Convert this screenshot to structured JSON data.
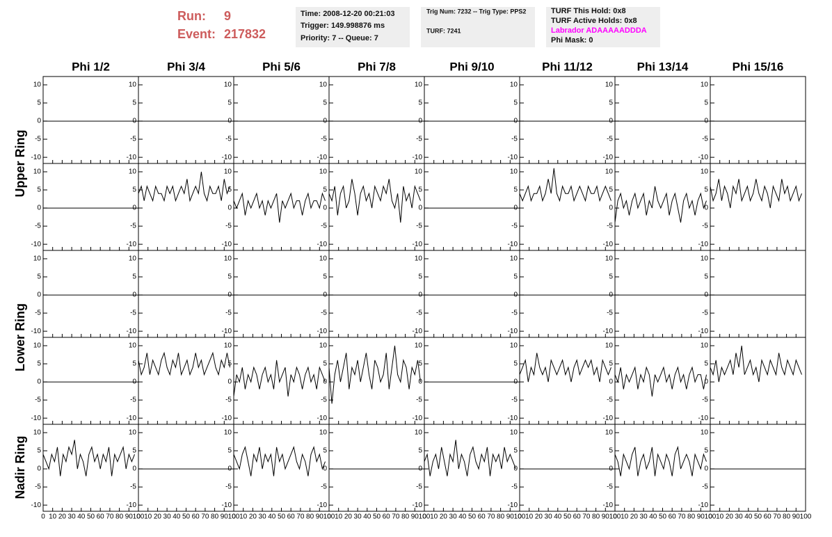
{
  "header": {
    "run_label": "Run:",
    "run": "9",
    "event_label": "Event:",
    "event": "217832",
    "time": "Time: 2008-12-20 00:21:03",
    "trigger": "Trigger: 149.998876 ms",
    "priority": "Priority: 7 -- Queue: 7",
    "trig_num": "Trig Num: 7232 -- Trig Type: PPS2",
    "turf": "TURF: 7241",
    "turf_hold": "TURF This Hold: 0x8",
    "turf_active": "TURF Active Holds: 0x8",
    "labrador": "Labrador ADAAAAADDDA",
    "phi_mask": "Phi Mask: 0"
  },
  "chart_data": {
    "type": "line",
    "color": "#000000",
    "columns": [
      "Phi 1/2",
      "Phi 3/4",
      "Phi 5/6",
      "Phi 7/8",
      "Phi 9/10",
      "Phi 11/12",
      "Phi 13/14",
      "Phi 15/16"
    ],
    "row_labels": [
      "Upper Ring",
      "Lower Ring",
      "Nadir Ring"
    ],
    "xlim": [
      0,
      100
    ],
    "ylim": [
      -11.7,
      12.3
    ],
    "xticks": [
      0,
      10,
      20,
      30,
      40,
      50,
      60,
      70,
      80,
      90,
      100
    ],
    "yticks": [
      -10,
      -5,
      0,
      5,
      10
    ],
    "x": [
      0,
      3,
      6,
      9,
      12,
      15,
      18,
      21,
      24,
      27,
      30,
      33,
      36,
      39,
      42,
      45,
      48,
      51,
      54,
      57,
      60,
      63,
      66,
      69,
      72,
      75,
      78,
      81,
      84,
      87,
      90,
      93,
      96
    ],
    "panels": [
      {
        "x": [
          0,
          100
        ],
        "values": [
          0,
          0
        ]
      },
      {
        "x": [
          0,
          100
        ],
        "values": [
          0,
          0
        ]
      },
      {
        "x": [
          0,
          100
        ],
        "values": [
          0,
          0
        ]
      },
      {
        "x": [
          0,
          100
        ],
        "values": [
          0,
          0
        ]
      },
      {
        "x": [
          0,
          100
        ],
        "values": [
          0,
          0
        ]
      },
      {
        "x": [
          0,
          100
        ],
        "values": [
          0,
          0
        ]
      },
      {
        "x": [
          0,
          100
        ],
        "values": [
          0,
          0
        ]
      },
      {
        "x": [
          0,
          100
        ],
        "values": [
          0,
          0
        ]
      },
      {
        "x": [
          0,
          100
        ],
        "values": [
          0,
          0
        ]
      },
      {
        "values": [
          4,
          6,
          2,
          6,
          4,
          2,
          6,
          4,
          4,
          2,
          6,
          4,
          6,
          2,
          4,
          6,
          4,
          8,
          2,
          4,
          6,
          4,
          10,
          4,
          2,
          6,
          4,
          4,
          6,
          2,
          8,
          4,
          6
        ]
      },
      {
        "values": [
          2,
          0,
          2,
          4,
          -2,
          2,
          0,
          2,
          4,
          0,
          2,
          -2,
          2,
          0,
          2,
          4,
          -4,
          2,
          0,
          2,
          4,
          0,
          2,
          2,
          -2,
          2,
          4,
          0,
          2,
          2,
          0,
          4,
          2
        ]
      },
      {
        "values": [
          4,
          2,
          6,
          -2,
          4,
          6,
          0,
          2,
          8,
          4,
          -2,
          4,
          6,
          2,
          4,
          0,
          6,
          4,
          2,
          6,
          4,
          8,
          2,
          0,
          4,
          -4,
          6,
          2,
          4,
          0,
          6,
          4,
          2
        ]
      },
      {
        "x": [
          0,
          100
        ],
        "values": [
          0,
          0
        ]
      },
      {
        "values": [
          4,
          2,
          4,
          6,
          2,
          4,
          4,
          6,
          2,
          4,
          8,
          4,
          11,
          4,
          2,
          6,
          4,
          4,
          6,
          2,
          4,
          6,
          4,
          2,
          6,
          4,
          4,
          6,
          2,
          4,
          6,
          4,
          2
        ]
      },
      {
        "values": [
          -4,
          2,
          4,
          0,
          2,
          -2,
          2,
          4,
          0,
          2,
          4,
          -2,
          2,
          0,
          6,
          2,
          0,
          2,
          4,
          -2,
          2,
          4,
          0,
          -4,
          2,
          4,
          0,
          2,
          -2,
          2,
          4,
          0,
          2
        ]
      },
      {
        "values": [
          6,
          2,
          4,
          8,
          2,
          6,
          4,
          0,
          6,
          4,
          8,
          2,
          4,
          6,
          2,
          4,
          8,
          4,
          2,
          6,
          4,
          0,
          6,
          4,
          2,
          8,
          4,
          6,
          2,
          4,
          6,
          2,
          4
        ]
      },
      {
        "x": [
          0,
          100
        ],
        "values": [
          0,
          0
        ]
      },
      {
        "x": [
          0,
          100
        ],
        "values": [
          0,
          0
        ]
      },
      {
        "x": [
          0,
          100
        ],
        "values": [
          0,
          0
        ]
      },
      {
        "x": [
          0,
          100
        ],
        "values": [
          0,
          0
        ]
      },
      {
        "x": [
          0,
          100
        ],
        "values": [
          0,
          0
        ]
      },
      {
        "x": [
          0,
          100
        ],
        "values": [
          0,
          0
        ]
      },
      {
        "x": [
          0,
          100
        ],
        "values": [
          0,
          0
        ]
      },
      {
        "x": [
          0,
          100
        ],
        "values": [
          0,
          0
        ]
      },
      {
        "x": [
          0,
          100
        ],
        "values": [
          0,
          0
        ]
      },
      {
        "values": [
          6,
          2,
          4,
          8,
          2,
          6,
          4,
          2,
          6,
          8,
          4,
          2,
          6,
          4,
          8,
          2,
          4,
          6,
          2,
          4,
          8,
          4,
          6,
          2,
          4,
          6,
          8,
          4,
          2,
          6,
          4,
          8,
          4
        ]
      },
      {
        "values": [
          -4,
          2,
          0,
          4,
          -2,
          2,
          0,
          4,
          2,
          -2,
          2,
          4,
          0,
          2,
          -2,
          6,
          0,
          2,
          4,
          -4,
          2,
          0,
          4,
          2,
          -2,
          2,
          4,
          0,
          2,
          -2,
          4,
          2,
          0
        ]
      },
      {
        "values": [
          4,
          -6,
          2,
          6,
          0,
          4,
          8,
          -2,
          4,
          2,
          6,
          0,
          4,
          8,
          2,
          -2,
          6,
          4,
          0,
          2,
          8,
          -2,
          4,
          10,
          2,
          0,
          6,
          4,
          -2,
          4,
          2,
          6,
          0
        ]
      },
      {
        "x": [
          0,
          100
        ],
        "values": [
          0,
          0
        ]
      },
      {
        "values": [
          2,
          4,
          6,
          0,
          4,
          2,
          8,
          4,
          2,
          4,
          0,
          6,
          4,
          2,
          4,
          6,
          2,
          4,
          0,
          4,
          6,
          2,
          4,
          6,
          4,
          6,
          2,
          4,
          0,
          6,
          4,
          2,
          4
        ]
      },
      {
        "values": [
          2,
          0,
          4,
          -2,
          2,
          0,
          2,
          4,
          -2,
          2,
          0,
          4,
          2,
          -4,
          2,
          0,
          2,
          4,
          0,
          2,
          -2,
          2,
          4,
          0,
          2,
          -2,
          2,
          4,
          0,
          2,
          2,
          -2,
          2
        ]
      },
      {
        "values": [
          4,
          2,
          6,
          0,
          4,
          2,
          4,
          6,
          2,
          8,
          4,
          10,
          2,
          4,
          6,
          2,
          4,
          0,
          6,
          4,
          2,
          6,
          4,
          2,
          8,
          4,
          2,
          6,
          4,
          2,
          6,
          4,
          2
        ]
      },
      {
        "values": [
          4,
          2,
          0,
          4,
          2,
          6,
          -2,
          4,
          2,
          6,
          4,
          8,
          0,
          4,
          2,
          -2,
          4,
          6,
          2,
          4,
          0,
          4,
          2,
          6,
          -2,
          4,
          2,
          4,
          6,
          0,
          4,
          2,
          4
        ]
      },
      {
        "x": [
          0,
          100
        ],
        "values": [
          0,
          0
        ]
      },
      {
        "values": [
          4,
          2,
          0,
          4,
          6,
          2,
          -2,
          4,
          2,
          6,
          0,
          4,
          2,
          4,
          -2,
          6,
          2,
          4,
          0,
          2,
          4,
          6,
          2,
          0,
          4,
          2,
          -2,
          4,
          6,
          2,
          4,
          0,
          2
        ]
      },
      {
        "x": [
          0,
          100
        ],
        "values": [
          0,
          0
        ]
      },
      {
        "values": [
          2,
          4,
          -2,
          2,
          4,
          0,
          6,
          2,
          -2,
          4,
          2,
          8,
          0,
          4,
          2,
          -2,
          4,
          6,
          2,
          0,
          4,
          2,
          6,
          -2,
          4,
          2,
          4,
          0,
          6,
          2,
          4,
          2,
          0
        ]
      },
      {
        "x": [
          0,
          100
        ],
        "values": [
          0,
          0
        ]
      },
      {
        "values": [
          4,
          2,
          -2,
          4,
          2,
          0,
          4,
          6,
          -2,
          2,
          4,
          0,
          2,
          6,
          -2,
          4,
          2,
          0,
          4,
          2,
          -2,
          4,
          6,
          0,
          2,
          4,
          2,
          -2,
          4,
          2,
          0,
          4,
          2
        ]
      },
      {
        "x": [
          0,
          100
        ],
        "values": [
          0,
          0
        ]
      }
    ]
  }
}
